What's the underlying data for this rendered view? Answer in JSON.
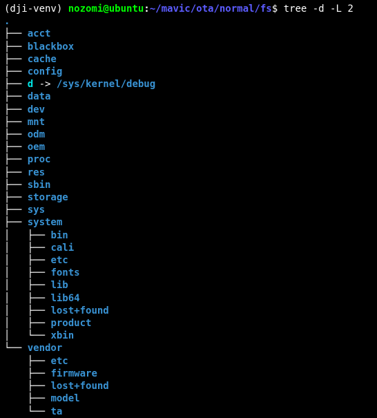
{
  "colors": {
    "bg": "#000000",
    "fg": "#ffffff",
    "venv": "#ffffff",
    "userhost_bold_green": "#00ff00",
    "path_bold_blue": "#5c5cff",
    "dollar": "#ffffff",
    "command": "#ffffff",
    "tree_lines": "#ffffff",
    "dir_blue": "#3993d4",
    "symlink_cyan": "#00e5e5",
    "arrow": "#ffffff"
  },
  "prompt": {
    "venv": "(dji-venv) ",
    "userhost": "nozomi@ubuntu",
    "colon": ":",
    "path": "~/mavic/ota/normal/fs",
    "dollar": "$ ",
    "command": "tree -d -L 2"
  },
  "tree": {
    "root_color_key": "dir_blue",
    "root": ".",
    "lines": [
      {
        "prefix": "├── ",
        "name": "acct",
        "color_key": "dir_blue"
      },
      {
        "prefix": "├── ",
        "name": "blackbox",
        "color_key": "dir_blue"
      },
      {
        "prefix": "├── ",
        "name": "cache",
        "color_key": "dir_blue"
      },
      {
        "prefix": "├── ",
        "name": "config",
        "color_key": "dir_blue"
      },
      {
        "prefix": "├── ",
        "name": "d",
        "color_key": "symlink_cyan",
        "arrow": " -> ",
        "target": "/sys/kernel/debug",
        "target_color_key": "dir_blue"
      },
      {
        "prefix": "├── ",
        "name": "data",
        "color_key": "dir_blue"
      },
      {
        "prefix": "├── ",
        "name": "dev",
        "color_key": "dir_blue"
      },
      {
        "prefix": "├── ",
        "name": "mnt",
        "color_key": "dir_blue"
      },
      {
        "prefix": "├── ",
        "name": "odm",
        "color_key": "dir_blue"
      },
      {
        "prefix": "├── ",
        "name": "oem",
        "color_key": "dir_blue"
      },
      {
        "prefix": "├── ",
        "name": "proc",
        "color_key": "dir_blue"
      },
      {
        "prefix": "├── ",
        "name": "res",
        "color_key": "dir_blue"
      },
      {
        "prefix": "├── ",
        "name": "sbin",
        "color_key": "dir_blue"
      },
      {
        "prefix": "├── ",
        "name": "storage",
        "color_key": "dir_blue"
      },
      {
        "prefix": "├── ",
        "name": "sys",
        "color_key": "dir_blue"
      },
      {
        "prefix": "├── ",
        "name": "system",
        "color_key": "dir_blue"
      },
      {
        "prefix": "│   ├── ",
        "name": "bin",
        "color_key": "dir_blue"
      },
      {
        "prefix": "│   ├── ",
        "name": "cali",
        "color_key": "dir_blue"
      },
      {
        "prefix": "│   ├── ",
        "name": "etc",
        "color_key": "dir_blue"
      },
      {
        "prefix": "│   ├── ",
        "name": "fonts",
        "color_key": "dir_blue"
      },
      {
        "prefix": "│   ├── ",
        "name": "lib",
        "color_key": "dir_blue"
      },
      {
        "prefix": "│   ├── ",
        "name": "lib64",
        "color_key": "dir_blue"
      },
      {
        "prefix": "│   ├── ",
        "name": "lost+found",
        "color_key": "dir_blue"
      },
      {
        "prefix": "│   ├── ",
        "name": "product",
        "color_key": "dir_blue"
      },
      {
        "prefix": "│   └── ",
        "name": "xbin",
        "color_key": "dir_blue"
      },
      {
        "prefix": "└── ",
        "name": "vendor",
        "color_key": "dir_blue"
      },
      {
        "prefix": "    ├── ",
        "name": "etc",
        "color_key": "dir_blue"
      },
      {
        "prefix": "    ├── ",
        "name": "firmware",
        "color_key": "dir_blue"
      },
      {
        "prefix": "    ├── ",
        "name": "lost+found",
        "color_key": "dir_blue"
      },
      {
        "prefix": "    ├── ",
        "name": "model",
        "color_key": "dir_blue"
      },
      {
        "prefix": "    └── ",
        "name": "ta",
        "color_key": "dir_blue"
      }
    ]
  }
}
